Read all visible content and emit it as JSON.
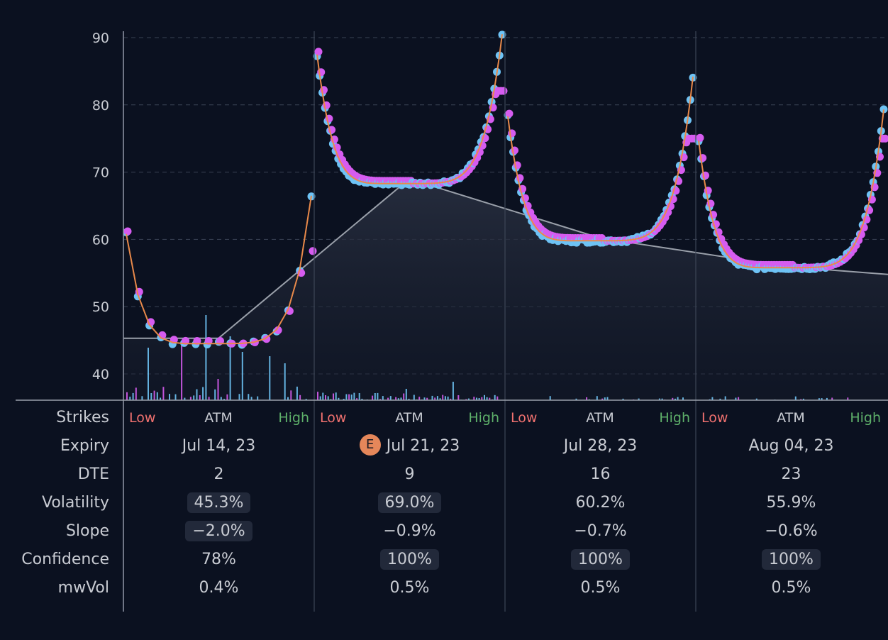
{
  "chart_data": {
    "type": "scatter",
    "ylim": [
      36,
      91
    ],
    "yticks": [
      40,
      50,
      60,
      70,
      80,
      90
    ],
    "grid": true,
    "colors": {
      "call_points": "#6ec3f5",
      "put_points": "#d65cf0",
      "fit_curve": "#e8894a",
      "term_line": "#9aa0aa",
      "volume_call": "#6ec3f5",
      "volume_put": "#d65cf0"
    },
    "term_structure": [
      {
        "expiry": "Jul 14, 23",
        "value": 45.3
      },
      {
        "expiry": "Jul 21, 23",
        "value": 69.0
      },
      {
        "expiry": "Jul 28, 23",
        "value": 60.2
      },
      {
        "expiry": "Aug 04, 23",
        "value": 55.9
      }
    ],
    "smiles": [
      {
        "expiry": "Jul 14, 23",
        "left": 60.8,
        "min": 44.5,
        "right": 66.5,
        "right_put": 57.0
      },
      {
        "expiry": "Jul 21, 23",
        "left": 87.5,
        "min": 68.3,
        "right": 90.5,
        "right_put": 80.8
      },
      {
        "expiry": "Jul 28, 23",
        "left": 78.3,
        "min": 59.8,
        "right": 84.2,
        "right_put": 73.8
      },
      {
        "expiry": "Aug 04, 23",
        "left": 74.7,
        "min": 55.8,
        "right": 79.3,
        "right_put": 74.0
      }
    ]
  },
  "table": {
    "row_labels": [
      "Strikes",
      "Expiry",
      "DTE",
      "Volatility",
      "Slope",
      "Confidence",
      "mwVol"
    ],
    "strike_labels": {
      "low": "Low",
      "atm": "ATM",
      "high": "High"
    },
    "earnings_badge": "E",
    "columns": [
      {
        "expiry": "Jul 14, 23",
        "dte": "2",
        "volatility": "45.3%",
        "slope": "−2.0%",
        "confidence": "78%",
        "mwvol": "0.4%"
      },
      {
        "expiry": "Jul 21, 23",
        "dte": "9",
        "volatility": "69.0%",
        "slope": "−0.9%",
        "confidence": "100%",
        "mwvol": "0.5%"
      },
      {
        "expiry": "Jul 28, 23",
        "dte": "16",
        "volatility": "60.2%",
        "slope": "−0.7%",
        "confidence": "100%",
        "mwvol": "0.5%"
      },
      {
        "expiry": "Aug 04, 23",
        "dte": "23",
        "volatility": "55.9%",
        "slope": "−0.6%",
        "confidence": "100%",
        "mwvol": "0.5%"
      }
    ]
  }
}
